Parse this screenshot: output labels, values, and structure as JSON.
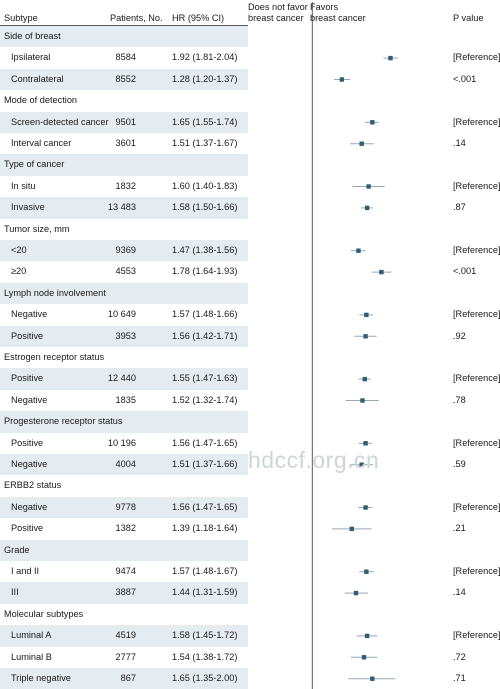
{
  "headers": {
    "subtype": "Subtype",
    "patients": "Patients, No.",
    "hr": "HR (95% CI)",
    "left_favor_line1": "Does not favor",
    "left_favor_line2": "breast cancer",
    "right_favor_line1": "Favors",
    "right_favor_line2": "breast cancer",
    "pvalue": "P value"
  },
  "watermark": "hdccf.org.cn",
  "chart_data": {
    "type": "forest",
    "xlabel": "HR (95% CI)",
    "xscale": "log",
    "xlim": [
      0.6,
      3.0
    ],
    "xticks": [
      "0.75",
      "1.00",
      "1.50",
      "2.00",
      "3.00"
    ],
    "reference_line": 1.0,
    "marker_color": "#2f5d74",
    "ci_color": "#9aa7b0",
    "rows": [
      {
        "kind": "group",
        "label": "Side of breast"
      },
      {
        "kind": "item",
        "label": "Ipsilateral",
        "n": "8584",
        "hr_text": "1.92 (1.81-2.04)",
        "hr": 1.92,
        "lo": 1.81,
        "hi": 2.04,
        "p": "[Reference]"
      },
      {
        "kind": "item",
        "label": "Contralateral",
        "n": "8552",
        "hr_text": "1.28 (1.20-1.37)",
        "hr": 1.28,
        "lo": 1.2,
        "hi": 1.37,
        "p": "<.001"
      },
      {
        "kind": "group",
        "label": "Mode of detection"
      },
      {
        "kind": "item",
        "label": "Screen-detected cancer",
        "n": "9501",
        "hr_text": "1.65 (1.55-1.74)",
        "hr": 1.65,
        "lo": 1.55,
        "hi": 1.74,
        "p": "[Reference]"
      },
      {
        "kind": "item",
        "label": "Interval cancer",
        "n": "3601",
        "hr_text": "1.51 (1.37-1.67)",
        "hr": 1.51,
        "lo": 1.37,
        "hi": 1.67,
        "p": ".14"
      },
      {
        "kind": "group",
        "label": "Type of cancer"
      },
      {
        "kind": "item",
        "label": "In situ",
        "n": "1832",
        "hr_text": "1.60 (1.40-1.83)",
        "hr": 1.6,
        "lo": 1.4,
        "hi": 1.83,
        "p": "[Reference]"
      },
      {
        "kind": "item",
        "label": "Invasive",
        "n": "13 483",
        "hr_text": "1.58 (1.50-1.66)",
        "hr": 1.58,
        "lo": 1.5,
        "hi": 1.66,
        "p": ".87"
      },
      {
        "kind": "group",
        "label": "Tumor size, mm"
      },
      {
        "kind": "item",
        "label": "<20",
        "n": "9369",
        "hr_text": "1.47 (1.38-1.56)",
        "hr": 1.47,
        "lo": 1.38,
        "hi": 1.56,
        "p": "[Reference]"
      },
      {
        "kind": "item",
        "label": "≥20",
        "n": "4553",
        "hr_text": "1.78 (1.64-1.93)",
        "hr": 1.78,
        "lo": 1.64,
        "hi": 1.93,
        "p": "<.001"
      },
      {
        "kind": "group",
        "label": "Lymph node involvement"
      },
      {
        "kind": "item",
        "label": "Negative",
        "n": "10 649",
        "hr_text": "1.57 (1.48-1.66)",
        "hr": 1.57,
        "lo": 1.48,
        "hi": 1.66,
        "p": "[Reference]"
      },
      {
        "kind": "item",
        "label": "Positive",
        "n": "3953",
        "hr_text": "1.56 (1.42-1.71)",
        "hr": 1.56,
        "lo": 1.42,
        "hi": 1.71,
        "p": ".92"
      },
      {
        "kind": "group",
        "label": "Estrogen receptor status"
      },
      {
        "kind": "item",
        "label": "Positive",
        "n": "12 440",
        "hr_text": "1.55 (1.47-1.63)",
        "hr": 1.55,
        "lo": 1.47,
        "hi": 1.63,
        "p": "[Reference]"
      },
      {
        "kind": "item",
        "label": "Negative",
        "n": "1835",
        "hr_text": "1.52 (1.32-1.74)",
        "hr": 1.52,
        "lo": 1.32,
        "hi": 1.74,
        "p": ".78"
      },
      {
        "kind": "group",
        "label": "Progesterone receptor status"
      },
      {
        "kind": "item",
        "label": "Positive",
        "n": "10 196",
        "hr_text": "1.56 (1.47-1.65)",
        "hr": 1.56,
        "lo": 1.47,
        "hi": 1.65,
        "p": "[Reference]"
      },
      {
        "kind": "item",
        "label": "Negative",
        "n": "4004",
        "hr_text": "1.51 (1.37-1.66)",
        "hr": 1.51,
        "lo": 1.37,
        "hi": 1.66,
        "p": ".59"
      },
      {
        "kind": "group",
        "label": "ERBB2 status"
      },
      {
        "kind": "item",
        "label": "Negative",
        "n": "9778",
        "hr_text": "1.56 (1.47-1.65)",
        "hr": 1.56,
        "lo": 1.47,
        "hi": 1.65,
        "p": "[Reference]"
      },
      {
        "kind": "item",
        "label": "Positive",
        "n": "1382",
        "hr_text": "1.39 (1.18-1.64)",
        "hr": 1.39,
        "lo": 1.18,
        "hi": 1.64,
        "p": ".21"
      },
      {
        "kind": "group",
        "label": "Grade"
      },
      {
        "kind": "item",
        "label": "I and II",
        "n": "9474",
        "hr_text": "1.57 (1.48-1.67)",
        "hr": 1.57,
        "lo": 1.48,
        "hi": 1.67,
        "p": "[Reference]"
      },
      {
        "kind": "item",
        "label": "III",
        "n": "3887",
        "hr_text": "1.44 (1.31-1.59)",
        "hr": 1.44,
        "lo": 1.31,
        "hi": 1.59,
        "p": ".14"
      },
      {
        "kind": "group",
        "label": "Molecular subtypes"
      },
      {
        "kind": "item",
        "label": "Luminal A",
        "n": "4519",
        "hr_text": "1.58 (1.45-1.72)",
        "hr": 1.58,
        "lo": 1.45,
        "hi": 1.72,
        "p": "[Reference]"
      },
      {
        "kind": "item",
        "label": "Luminal B",
        "n": "2777",
        "hr_text": "1.54 (1.38-1.72)",
        "hr": 1.54,
        "lo": 1.38,
        "hi": 1.72,
        "p": ".72"
      },
      {
        "kind": "item",
        "label": "Triple negative",
        "n": "867",
        "hr_text": "1.65 (1.35-2.00)",
        "hr": 1.65,
        "lo": 1.35,
        "hi": 2.0,
        "p": ".71"
      }
    ]
  }
}
